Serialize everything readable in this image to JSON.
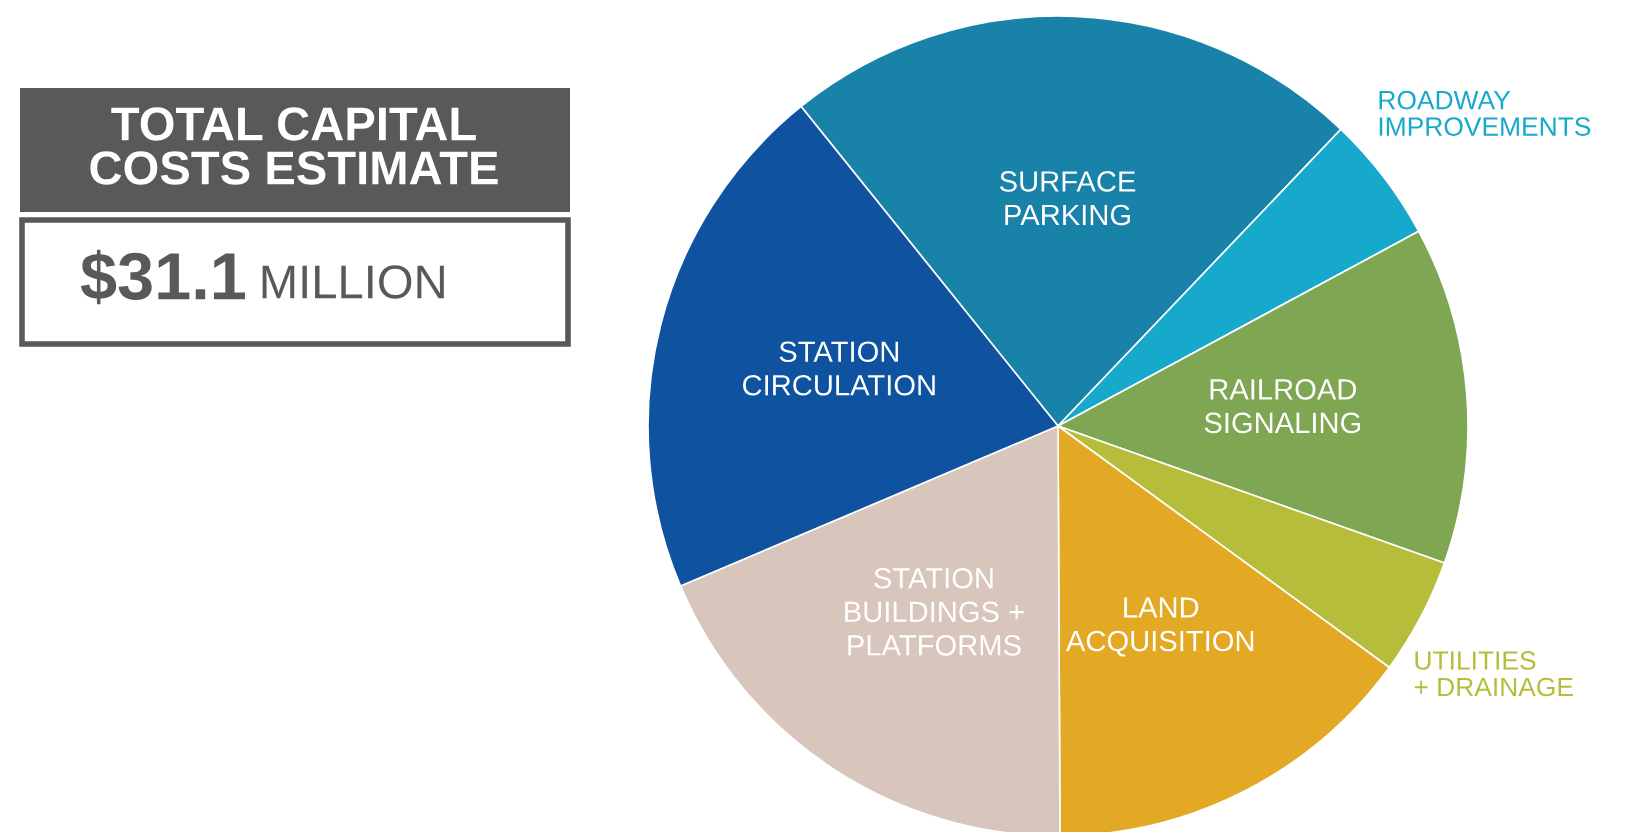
{
  "chart_data": {
    "type": "pie",
    "title": "TOTAL CAPITAL\nCOSTS ESTIMATE",
    "subtitle": "$31.1 MILLION",
    "categories": [
      "SURFACE\nPARKING",
      "ROADWAY\nIMPROVEMENTS",
      "RAILROAD\nSIGNALING",
      "UTILITIES\n+ DRAINAGE",
      "LAND\nACQUISITION",
      "STATION\nBUILDINGS +\nPLATFORMS",
      "STATION\nCIRCULATION"
    ],
    "values": [
      22.9,
      5.0,
      13.3,
      4.6,
      14.9,
      18.7,
      20.6
    ],
    "colors": [
      "#1982a8",
      "#16a9cc",
      "#7fa652",
      "#b5bd3a",
      "#e3a925",
      "#d8c5bc",
      "#0f53a0"
    ],
    "legend": false
  }
}
